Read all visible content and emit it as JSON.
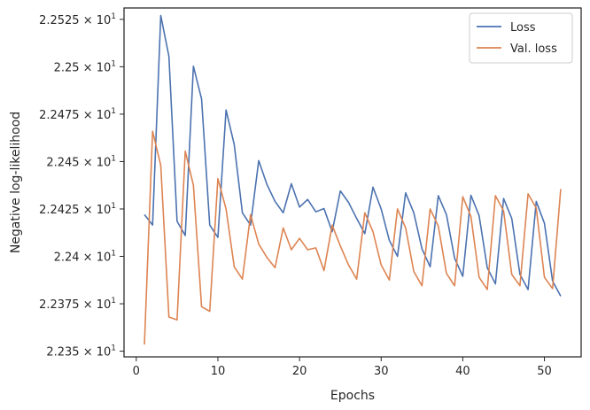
{
  "chart_data": {
    "type": "line",
    "title": "",
    "xlabel": "Epochs",
    "ylabel": "Negative log-likelihood",
    "xlim": [
      -1.5,
      54.5
    ],
    "ylim": [
      22.347,
      22.531
    ],
    "grid": false,
    "legend_position": "top-right",
    "x_ticks": [
      0,
      10,
      20,
      30,
      40,
      50
    ],
    "x_tick_labels": [
      "0",
      "10",
      "20",
      "30",
      "40",
      "50"
    ],
    "y_ticks": [
      22.35,
      22.375,
      22.4,
      22.425,
      22.45,
      22.475,
      22.5,
      22.525
    ],
    "y_tick_labels": [
      "2.235",
      "2.2375",
      "2.24",
      "2.2425",
      "2.245",
      "2.2475",
      "2.25",
      "2.2525"
    ],
    "y_tick_exponent": "× 10",
    "y_tick_power": "1",
    "x": [
      1,
      2,
      3,
      4,
      5,
      6,
      7,
      8,
      9,
      10,
      11,
      12,
      13,
      14,
      15,
      16,
      17,
      18,
      19,
      20,
      21,
      22,
      23,
      24,
      25,
      26,
      27,
      28,
      29,
      30,
      31,
      32,
      33,
      34,
      35,
      36,
      37,
      38,
      39,
      40,
      41,
      42,
      43,
      44,
      45,
      46,
      47,
      48,
      49,
      50,
      51,
      52
    ],
    "series": [
      {
        "name": "Loss",
        "color": "#4c72b0",
        "values": [
          22.422,
          22.4165,
          22.527,
          22.5055,
          22.4185,
          22.411,
          22.5003,
          22.483,
          22.4165,
          22.41,
          22.4772,
          22.459,
          22.423,
          22.4165,
          22.4505,
          22.438,
          22.429,
          22.423,
          22.4383,
          22.426,
          22.43,
          22.4235,
          22.4252,
          22.413,
          22.4345,
          22.4285,
          22.42,
          22.412,
          22.4365,
          22.425,
          22.4085,
          22.4,
          22.4335,
          22.423,
          22.404,
          22.3945,
          22.432,
          22.422,
          22.399,
          22.3895,
          22.4322,
          22.4215,
          22.394,
          22.3855,
          22.4305,
          22.42,
          22.3905,
          22.3825,
          22.429,
          22.4175,
          22.387,
          22.379
        ]
      },
      {
        "name": "Val. loss",
        "color": "#dd8452",
        "values": [
          22.3535,
          22.466,
          22.448,
          22.368,
          22.3665,
          22.4555,
          22.4375,
          22.3735,
          22.371,
          22.441,
          22.425,
          22.3945,
          22.388,
          22.422,
          22.4065,
          22.3995,
          22.394,
          22.415,
          22.4035,
          22.4095,
          22.4035,
          22.4045,
          22.3925,
          22.4165,
          22.4055,
          22.3955,
          22.388,
          22.423,
          22.413,
          22.3955,
          22.3875,
          22.425,
          22.415,
          22.392,
          22.3845,
          22.425,
          22.416,
          22.391,
          22.3845,
          22.4315,
          22.421,
          22.389,
          22.3825,
          22.432,
          22.424,
          22.3905,
          22.3845,
          22.433,
          22.4255,
          22.389,
          22.383,
          22.4355
        ]
      }
    ]
  }
}
